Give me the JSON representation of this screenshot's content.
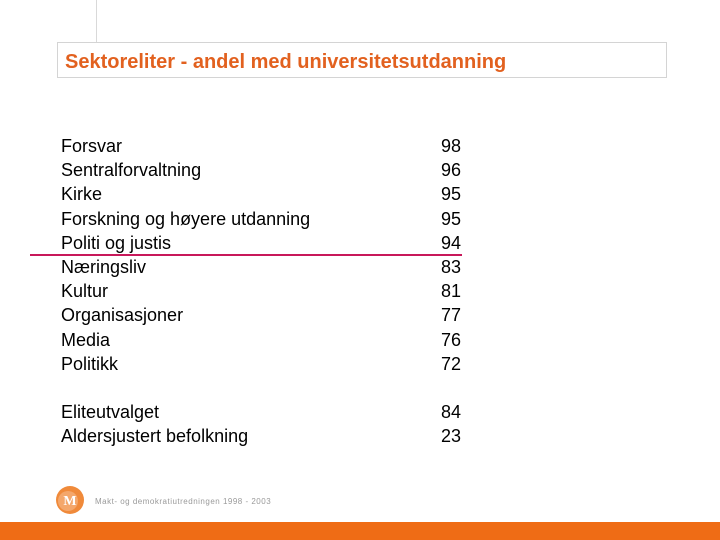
{
  "slide": {
    "title": "Sektoreliter - andel med universitetsutdanning"
  },
  "table": {
    "sectors": [
      {
        "label": "Forsvar",
        "value": "98"
      },
      {
        "label": "Sentralforvaltning",
        "value": "96"
      },
      {
        "label": "Kirke",
        "value": "95"
      },
      {
        "label": "Forskning og høyere utdanning",
        "value": "95"
      },
      {
        "label": "Politi og justis",
        "value": "94"
      },
      {
        "label": "Næringsliv",
        "value": "83"
      },
      {
        "label": "Kultur",
        "value": "81"
      },
      {
        "label": "Organisasjoner",
        "value": "77"
      },
      {
        "label": "Media",
        "value": "76"
      },
      {
        "label": "Politikk",
        "value": "72"
      }
    ],
    "totals": [
      {
        "label": "Eliteutvalget",
        "value": "84"
      },
      {
        "label": "Aldersjustert befolkning",
        "value": "23"
      }
    ]
  },
  "footer": {
    "logo_text": "Makt- og demokratiutredningen 1998 - 2003",
    "logo_letter": "M"
  },
  "colors": {
    "title": "#e2611f",
    "divider": "#c8185a",
    "bottom_bar": "#ef6c15"
  }
}
